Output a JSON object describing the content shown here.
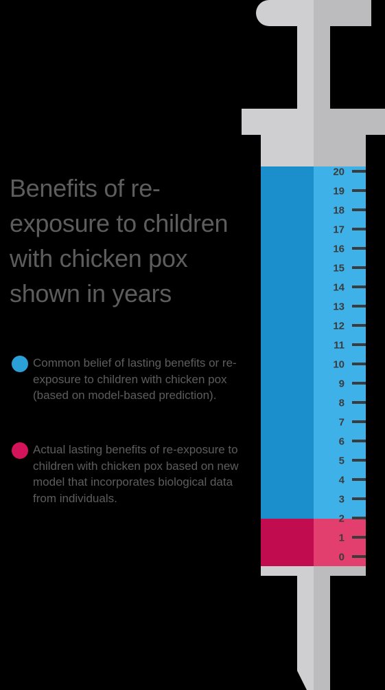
{
  "title": "Benefits of re-exposure to children with chicken pox shown in years",
  "legend": [
    {
      "id": "common-belief",
      "color": "#2a9fd8",
      "text": "Common belief of lasting benefits or re-exposure to children with chicken pox (based on model-based prediction)."
    },
    {
      "id": "actual",
      "color": "#d4145a",
      "text": "Actual lasting benefits of re-exposure to children with chicken pox based on new model that incorporates biological data from individuals."
    }
  ],
  "colors": {
    "background": "#000000",
    "text": "#5d5d5d",
    "blue_dark": "#1b8fcc",
    "blue_light": "#3eb1e8",
    "red_dark": "#c10c4f",
    "red_light": "#e23f6e",
    "syringe_light": "#cfcfd1",
    "syringe_dark": "#bcbcbe",
    "tick": "#3b3b3b"
  },
  "chart_data": {
    "type": "bar",
    "orientation": "vertical",
    "title": "Benefits of re-exposure to children with chicken pox shown in years",
    "ylabel": "",
    "ylim": [
      0,
      20
    ],
    "yticks": [
      "0",
      "1",
      "2",
      "3",
      "4",
      "5",
      "6",
      "7",
      "8",
      "9",
      "10",
      "11",
      "12",
      "13",
      "14",
      "15",
      "16",
      "17",
      "18",
      "19",
      "20"
    ],
    "series": [
      {
        "name": "Common belief of lasting benefits or re-exposure to children with chicken pox (based on model-based prediction).",
        "value": 20,
        "color": "#2a9fd8"
      },
      {
        "name": "Actual lasting benefits of re-exposure to children with chicken pox based on new model that incorporates biological data from individuals.",
        "value": 2,
        "color": "#d4145a"
      }
    ]
  }
}
